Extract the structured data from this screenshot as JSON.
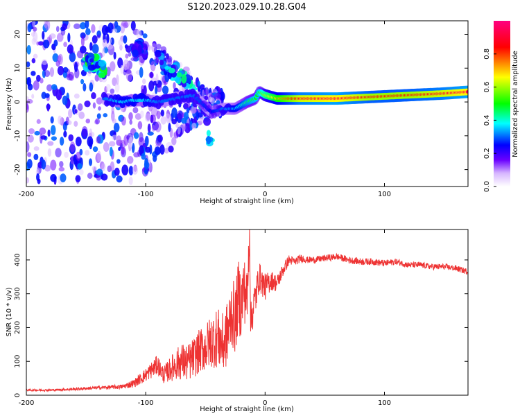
{
  "figure": {
    "title": "S120.2023.029.10.28.G04"
  },
  "chart_data": [
    {
      "type": "heatmap",
      "xlabel": "Height of straight line (km)",
      "ylabel": "Frequency (Hz)",
      "xlim": [
        -200,
        170
      ],
      "ylim": [
        -25,
        24
      ],
      "xticks": [
        -200,
        -100,
        0,
        100
      ],
      "yticks": [
        -20,
        -10,
        0,
        10,
        20
      ],
      "colorbar": {
        "label": "Normalized spectral amplitude",
        "range": [
          0,
          1
        ],
        "ticks": [
          "0.0",
          "0.2",
          "0.4",
          "0.6",
          "0.8"
        ],
        "colors": [
          "#ffffff",
          "#6a00ff",
          "#0000ff",
          "#00ffff",
          "#00ff00",
          "#ffff00",
          "#ff0000",
          "#ff0080"
        ]
      },
      "ridge": {
        "x": [
          -135,
          -120,
          -110,
          -100,
          -90,
          -75,
          -60,
          -45,
          -35,
          -25,
          -15,
          -8,
          -5,
          0,
          10,
          30,
          60,
          90,
          120,
          150,
          170
        ],
        "frequency": [
          1,
          0,
          0.5,
          0.5,
          0,
          1,
          2,
          -3,
          -2,
          -2,
          0,
          1,
          3,
          2,
          1,
          1,
          1,
          1.5,
          2,
          2.5,
          3
        ],
        "amplitude": [
          0.3,
          0.35,
          0.35,
          0.35,
          0.3,
          0.3,
          0.3,
          0.25,
          0.3,
          0.35,
          0.45,
          0.5,
          0.5,
          0.6,
          0.7,
          0.9,
          0.95,
          0.85,
          0.85,
          0.9,
          0.95
        ]
      },
      "scatter_cloud": {
        "x_range": [
          -200,
          -35
        ],
        "frequency_range": [
          -25,
          24
        ],
        "amplitude": 0.15
      },
      "side_branches": [
        {
          "x": [
            -150,
            -140,
            -135
          ],
          "frequency": [
            12,
            11,
            9
          ],
          "amplitude": 0.35
        },
        {
          "x": [
            -110,
            -105,
            -100
          ],
          "frequency": [
            14,
            17,
            15
          ],
          "amplitude": 0.2
        },
        {
          "x": [
            -90,
            -80,
            -70,
            -60,
            -50,
            -45
          ],
          "frequency": [
            14,
            10,
            8,
            2,
            -5,
            -14
          ],
          "amplitude": 0.3
        }
      ]
    },
    {
      "type": "line",
      "xlabel": "Height of straight line (km)",
      "ylabel": "SNR (10 * v/v)",
      "xlim": [
        -200,
        170
      ],
      "ylim": [
        0,
        490
      ],
      "xticks": [
        -200,
        -100,
        0,
        100
      ],
      "yticks": [
        0,
        100,
        200,
        300,
        400
      ],
      "color": "#ee3333",
      "series": [
        {
          "x": [
            -200,
            -180,
            -160,
            -140,
            -120,
            -110,
            -100,
            -95,
            -90,
            -85,
            -80,
            -75,
            -70,
            -65,
            -60,
            -55,
            -50,
            -45,
            -40,
            -35,
            -30,
            -28,
            -25,
            -22,
            -20,
            -18,
            -15,
            -13,
            -12,
            -10,
            -8,
            -5,
            0,
            5,
            10,
            15,
            20,
            25,
            30,
            35,
            40,
            50,
            60,
            70,
            80,
            90,
            100,
            110,
            120,
            130,
            140,
            150,
            160,
            170
          ],
          "values": [
            15,
            15,
            18,
            22,
            25,
            35,
            60,
            75,
            90,
            60,
            75,
            90,
            100,
            95,
            110,
            130,
            140,
            160,
            170,
            150,
            200,
            250,
            220,
            300,
            260,
            320,
            280,
            490,
            210,
            260,
            290,
            350,
            320,
            340,
            330,
            370,
            400,
            395,
            405,
            400,
            400,
            405,
            410,
            400,
            395,
            395,
            390,
            395,
            385,
            385,
            380,
            380,
            375,
            365
          ],
          "noise_amplitude": [
            3,
            3,
            4,
            5,
            7,
            12,
            20,
            25,
            30,
            25,
            35,
            45,
            55,
            55,
            60,
            65,
            70,
            80,
            90,
            90,
            100,
            110,
            100,
            110,
            110,
            100,
            90,
            60,
            60,
            60,
            55,
            45,
            40,
            30,
            25,
            20,
            15,
            12,
            12,
            10,
            10,
            10,
            10,
            10,
            10,
            10,
            10,
            9,
            9,
            9,
            9,
            9,
            9,
            9
          ]
        }
      ]
    }
  ]
}
